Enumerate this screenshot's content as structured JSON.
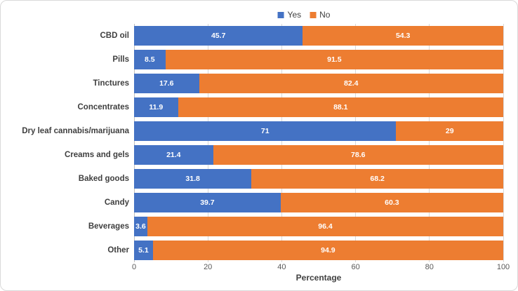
{
  "chart_data": {
    "type": "bar",
    "orientation": "horizontal",
    "stacked": true,
    "categories": [
      "CBD oil",
      "Pills",
      "Tinctures",
      "Concentrates",
      "Dry leaf cannabis/marijuana",
      "Creams and gels",
      "Baked goods",
      "Candy",
      "Beverages",
      "Other"
    ],
    "series": [
      {
        "name": "Yes",
        "color": "#4472C4",
        "values": [
          45.7,
          8.5,
          17.6,
          11.9,
          71,
          21.4,
          31.8,
          39.7,
          3.6,
          5.1
        ]
      },
      {
        "name": "No",
        "color": "#ED7D31",
        "values": [
          54.3,
          91.5,
          82.4,
          88.1,
          29,
          78.6,
          68.2,
          60.3,
          96.4,
          94.9
        ]
      }
    ],
    "xlabel": "Percentage",
    "xlim": [
      0,
      100
    ],
    "x_ticks": [
      0,
      20,
      40,
      60,
      80,
      100
    ],
    "legend_position": "top-center",
    "grid": "vertical",
    "value_labels": "inside-center"
  },
  "colors": {
    "axis_line": "#bfbfbf",
    "gridline": "#d9d9d9",
    "tick_text": "#595959",
    "category_label_text": "#3f3f3f",
    "bar_value_text": "#ffffff",
    "figure_border": "#d9d9d9",
    "background": "#ffffff"
  }
}
